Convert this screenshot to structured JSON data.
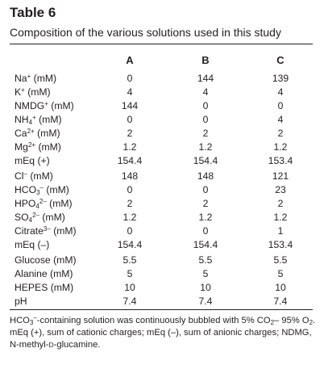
{
  "table": {
    "title": "Table 6",
    "subtitle": "Composition of the various solutions used in this study",
    "columns": [
      "A",
      "B",
      "C"
    ],
    "rows": [
      {
        "base": "Na",
        "sup": "+",
        "sub": "",
        "sup2": "",
        "unit": " (mM)",
        "values": [
          "0",
          "144",
          "139"
        ]
      },
      {
        "base": "K",
        "sup": "+",
        "sub": "",
        "sup2": "",
        "unit": " (mM)",
        "values": [
          "4",
          "4",
          "4"
        ]
      },
      {
        "base": "NMDG",
        "sup": "+",
        "sub": "",
        "sup2": "",
        "unit": " (mM)",
        "values": [
          "144",
          "0",
          "0"
        ]
      },
      {
        "base": "NH",
        "sup": "",
        "sub": "4",
        "sup2": "+",
        "unit": " (mM)",
        "values": [
          "0",
          "0",
          "4"
        ]
      },
      {
        "base": "Ca",
        "sup": "2+",
        "sub": "",
        "sup2": "",
        "unit": " (mM)",
        "values": [
          "2",
          "2",
          "2"
        ]
      },
      {
        "base": "Mg",
        "sup": "2+",
        "sub": "",
        "sup2": "",
        "unit": " (mM)",
        "values": [
          "1.2",
          "1.2",
          "1.2"
        ]
      },
      {
        "base": "mEq (+)",
        "sup": "",
        "sub": "",
        "sup2": "",
        "unit": "",
        "values": [
          "154.4",
          "154.4",
          "153.4"
        ]
      },
      {
        "base": "Cl",
        "sup": "–",
        "sub": "",
        "sup2": "",
        "unit": " (mM)",
        "values": [
          "148",
          "148",
          "121"
        ]
      },
      {
        "base": "HCO",
        "sup": "",
        "sub": "3",
        "sup2": "–",
        "unit": " (mM)",
        "values": [
          "0",
          "0",
          "23"
        ]
      },
      {
        "base": "HPO",
        "sup": "",
        "sub": "4",
        "sup2": "2–",
        "unit": " (mM)",
        "values": [
          "2",
          "2",
          "2"
        ]
      },
      {
        "base": "SO",
        "sup": "",
        "sub": "4",
        "sup2": "2–",
        "unit": " (mM)",
        "values": [
          "1.2",
          "1.2",
          "1.2"
        ]
      },
      {
        "base": "Citrate",
        "sup": "3–",
        "sub": "",
        "sup2": "",
        "unit": " (mM)",
        "values": [
          "0",
          "0",
          "1"
        ]
      },
      {
        "base": "mEq (–)",
        "sup": "",
        "sub": "",
        "sup2": "",
        "unit": "",
        "values": [
          "154.4",
          "154.4",
          "153.4"
        ]
      },
      {
        "base": "Glucose",
        "sup": "",
        "sub": "",
        "sup2": "",
        "unit": " (mM)",
        "values": [
          "5.5",
          "5.5",
          "5.5"
        ]
      },
      {
        "base": "Alanine",
        "sup": "",
        "sub": "",
        "sup2": "",
        "unit": " (mM)",
        "values": [
          "5",
          "5",
          "5"
        ]
      },
      {
        "base": "HEPES",
        "sup": "",
        "sub": "",
        "sup2": "",
        "unit": " (mM)",
        "values": [
          "10",
          "10",
          "10"
        ]
      },
      {
        "base": "pH",
        "sup": "",
        "sub": "",
        "sup2": "",
        "unit": "",
        "values": [
          "7.4",
          "7.4",
          "7.4"
        ]
      }
    ],
    "footnote": {
      "p1": "HCO",
      "p1_sub": "3",
      "p1_sup": "–",
      "p2": "-containing solution was continuously bubbled with 5% CO",
      "p2_sub": "2",
      "p3": "– 95% O",
      "p3_sub": "2",
      "p4": ". mEq (+), sum of cationic charges; mEq (–), sum of anionic charges; NDMG, N-methyl-",
      "p4_sc": "D",
      "p5": "-glucamine."
    }
  }
}
